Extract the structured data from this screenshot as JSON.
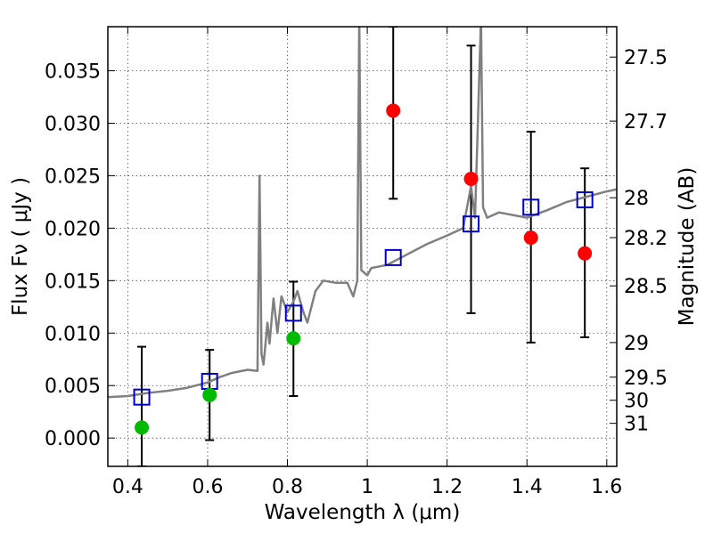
{
  "chart_data": {
    "type": "scatter",
    "xlabel": "Wavelength  λ (μm)",
    "ylabel": "Flux  Fν  ( μJy )",
    "y2label": "Magnitude (AB)",
    "xlim": [
      0.35,
      1.625
    ],
    "ylim": [
      -0.0027,
      0.0392
    ],
    "grid": true,
    "x_ticks": [
      {
        "v": 0.4,
        "t": "0.4"
      },
      {
        "v": 0.6,
        "t": "0.6"
      },
      {
        "v": 0.8,
        "t": "0.8"
      },
      {
        "v": 1.0,
        "t": "1"
      },
      {
        "v": 1.2,
        "t": "1.2"
      },
      {
        "v": 1.4,
        "t": "1.4"
      },
      {
        "v": 1.6,
        "t": "1.6"
      }
    ],
    "y_ticks": [
      {
        "v": 0.0,
        "t": "0.000"
      },
      {
        "v": 0.005,
        "t": "0.005"
      },
      {
        "v": 0.01,
        "t": "0.010"
      },
      {
        "v": 0.015,
        "t": "0.015"
      },
      {
        "v": 0.02,
        "t": "0.020"
      },
      {
        "v": 0.025,
        "t": "0.025"
      },
      {
        "v": 0.03,
        "t": "0.030"
      },
      {
        "v": 0.035,
        "t": "0.035"
      }
    ],
    "mag_ticks": [
      {
        "v": 0.0363,
        "t": "27.5"
      },
      {
        "v": 0.0302,
        "t": "27.7"
      },
      {
        "v": 0.0229,
        "t": "28"
      },
      {
        "v": 0.0191,
        "t": "28.2"
      },
      {
        "v": 0.0145,
        "t": "28.5"
      },
      {
        "v": 0.0091,
        "t": "29"
      },
      {
        "v": 0.0058,
        "t": "29.5"
      },
      {
        "v": 0.0036,
        "t": "30"
      },
      {
        "v": 0.0014,
        "t": "31"
      }
    ],
    "series": [
      {
        "color": "#808080",
        "points": [
          [
            0.35,
            0.0039
          ],
          [
            0.4,
            0.004
          ],
          [
            0.45,
            0.0043
          ],
          [
            0.5,
            0.0045
          ],
          [
            0.55,
            0.0048
          ],
          [
            0.6,
            0.0053
          ],
          [
            0.63,
            0.0058
          ],
          [
            0.66,
            0.0062
          ],
          [
            0.7,
            0.0065
          ],
          [
            0.725,
            0.0064
          ],
          [
            0.73,
            0.025
          ],
          [
            0.735,
            0.008
          ],
          [
            0.74,
            0.007
          ],
          [
            0.75,
            0.011
          ],
          [
            0.755,
            0.009
          ],
          [
            0.765,
            0.0133
          ],
          [
            0.775,
            0.01
          ],
          [
            0.785,
            0.0135
          ],
          [
            0.8,
            0.012
          ],
          [
            0.815,
            0.013
          ],
          [
            0.825,
            0.014
          ],
          [
            0.84,
            0.012
          ],
          [
            0.85,
            0.011
          ],
          [
            0.87,
            0.014
          ],
          [
            0.89,
            0.015
          ],
          [
            0.92,
            0.0148
          ],
          [
            0.95,
            0.0148
          ],
          [
            0.965,
            0.0135
          ],
          [
            0.975,
            0.015
          ],
          [
            0.98,
            0.04
          ],
          [
            0.985,
            0.016
          ],
          [
            1.0,
            0.0155
          ],
          [
            1.01,
            0.0162
          ],
          [
            1.05,
            0.0165
          ],
          [
            1.1,
            0.0175
          ],
          [
            1.15,
            0.0185
          ],
          [
            1.2,
            0.0193
          ],
          [
            1.24,
            0.02
          ],
          [
            1.26,
            0.024
          ],
          [
            1.27,
            0.021
          ],
          [
            1.285,
            0.04
          ],
          [
            1.29,
            0.022
          ],
          [
            1.3,
            0.021
          ],
          [
            1.33,
            0.0215
          ],
          [
            1.4,
            0.021
          ],
          [
            1.45,
            0.0217
          ],
          [
            1.5,
            0.0225
          ],
          [
            1.55,
            0.023
          ],
          [
            1.6,
            0.0235
          ],
          [
            1.625,
            0.0237
          ]
        ]
      },
      {
        "marker": "square",
        "color": "#0000cc",
        "points": [
          [
            0.435,
            0.0039
          ],
          [
            0.605,
            0.0054
          ],
          [
            0.815,
            0.0119
          ],
          [
            1.065,
            0.0172
          ],
          [
            1.26,
            0.0204
          ],
          [
            1.41,
            0.022
          ],
          [
            1.545,
            0.0227
          ]
        ]
      },
      {
        "marker": "circle",
        "color": "#00bb00",
        "points": [
          [
            0.435,
            0.001
          ],
          [
            0.605,
            0.0041
          ],
          [
            0.815,
            0.0095
          ]
        ]
      },
      {
        "marker": "circle",
        "color": "#ff0000",
        "points": [
          [
            1.065,
            0.0312
          ],
          [
            1.26,
            0.0247
          ],
          [
            1.41,
            0.0191
          ],
          [
            1.545,
            0.0176
          ]
        ]
      }
    ],
    "error_bars": [
      {
        "x": 0.435,
        "low": -0.0027,
        "high": 0.0087
      },
      {
        "x": 0.605,
        "low": -0.0002,
        "high": 0.0084
      },
      {
        "x": 0.815,
        "low": 0.004,
        "high": 0.0149
      },
      {
        "x": 1.065,
        "low": 0.0228,
        "high": 0.0392
      },
      {
        "x": 1.26,
        "low": 0.0119,
        "high": 0.0374
      },
      {
        "x": 1.41,
        "low": 0.0091,
        "high": 0.0292
      },
      {
        "x": 1.545,
        "low": 0.0096,
        "high": 0.0257
      }
    ]
  }
}
